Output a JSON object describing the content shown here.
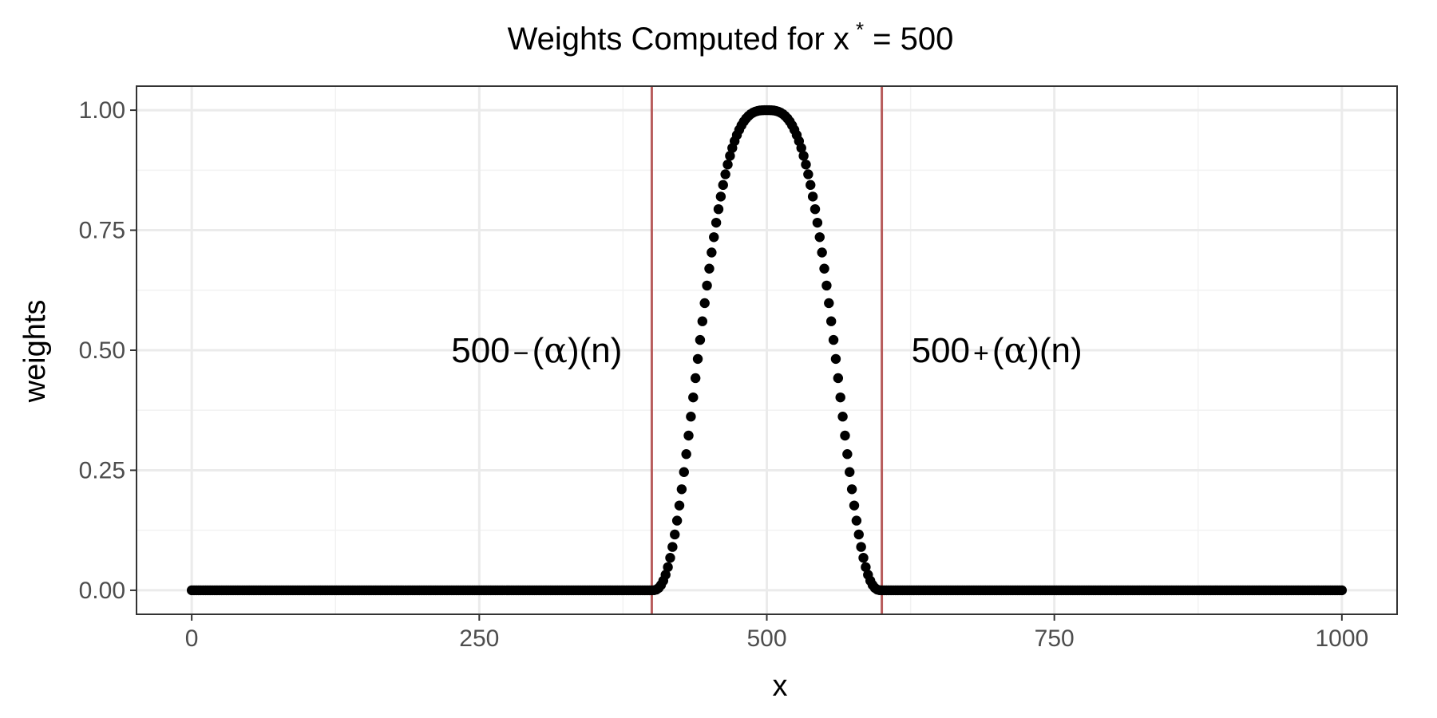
{
  "chart_data": {
    "type": "scatter",
    "title": {
      "main": "Weights Computed for x",
      "superscript": "*",
      "suffix": " = 500"
    },
    "xlabel": "x",
    "ylabel": "weights",
    "xlim": [
      -48,
      1048
    ],
    "ylim": [
      -0.05,
      1.05
    ],
    "x_ticks": [
      0,
      250,
      500,
      750,
      1000
    ],
    "x_tick_labels": [
      "0",
      "250",
      "500",
      "750",
      "1000"
    ],
    "y_ticks": [
      0,
      0.25,
      0.5,
      0.75,
      1
    ],
    "y_tick_labels": [
      "0.00",
      "0.25",
      "0.50",
      "0.75",
      "1.00"
    ],
    "grid": true,
    "legend": "none",
    "colors": {
      "points": "#000000",
      "vlines": "#b85c5c",
      "grid_major": "#ebebeb",
      "grid_minor": "#f2f2f2",
      "panel_border": "#333333"
    },
    "series": [
      {
        "x_start": 0,
        "x_end": 1000,
        "x_step": 2,
        "function": "tricube weight centered at 500 with half-width 100; 0 outside [400, 600]"
      }
    ],
    "vlines": [
      400,
      600
    ],
    "annotations": [
      {
        "prefix": "500",
        "op": "−",
        "alpha": "α",
        "n": "n",
        "x": 300,
        "y": 0.5,
        "anchor": "middle"
      },
      {
        "prefix": "500",
        "op": "+",
        "alpha": "α",
        "n": "n",
        "x": 700,
        "y": 0.5,
        "anchor": "middle"
      }
    ]
  }
}
